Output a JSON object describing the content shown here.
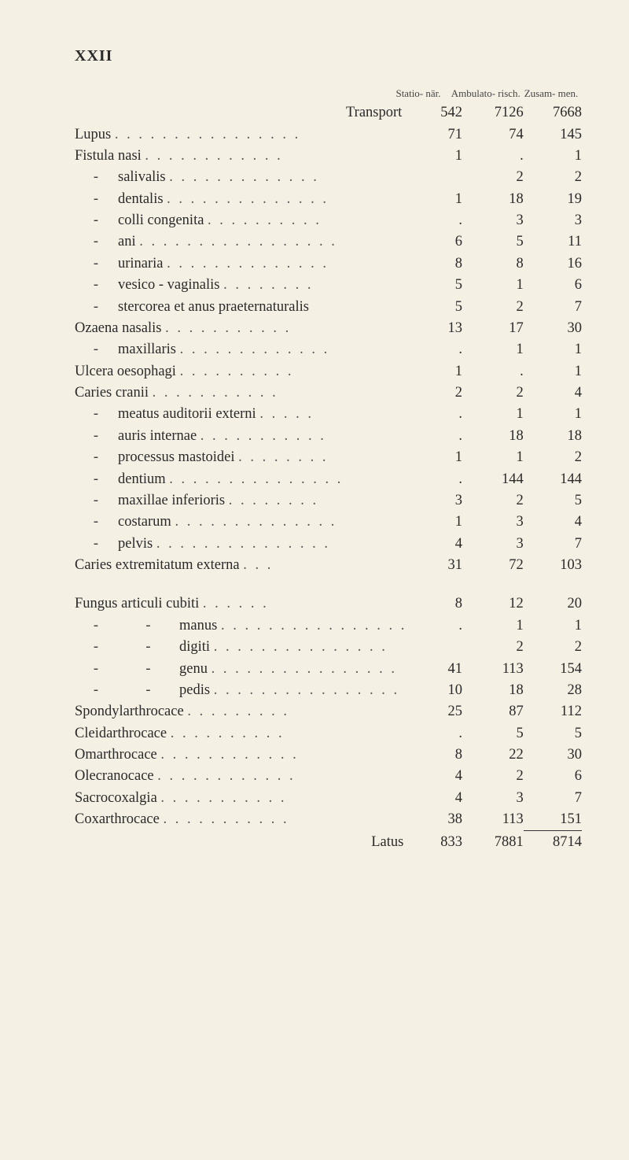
{
  "page_number": "XXII",
  "col_header_1": "Statio-\nnär.",
  "col_header_2": "Ambulato-\nrisch.",
  "col_header_3": "Zusam-\nmen.",
  "rows": [
    {
      "label": "Transport",
      "right_align_label": true,
      "c1": "542",
      "c2": "7126",
      "c3": "7668"
    },
    {
      "label": "Lupus",
      "leader": true,
      "c1": "71",
      "c2": "74",
      "c3": "145"
    },
    {
      "label": "Fistula nasi",
      "leader": true,
      "c1": "1",
      "c2": ".",
      "c3": "1"
    },
    {
      "dash": true,
      "sub": "salivalis",
      "leader": true,
      "c1": "",
      "c2": "2",
      "c3": "2"
    },
    {
      "dash": true,
      "sub": "dentalis",
      "leader": true,
      "c1": "1",
      "c2": "18",
      "c3": "19"
    },
    {
      "dash": true,
      "sub": "colli congenita",
      "leader": true,
      "c1": ".",
      "c2": "3",
      "c3": "3"
    },
    {
      "dash": true,
      "sub": "ani",
      "leader": true,
      "c1": "6",
      "c2": "5",
      "c3": "11"
    },
    {
      "dash": true,
      "sub": "urinaria",
      "leader": true,
      "c1": "8",
      "c2": "8",
      "c3": "16"
    },
    {
      "dash": true,
      "sub": "vesico - vaginalis",
      "leader": true,
      "c1": "5",
      "c2": "1",
      "c3": "6"
    },
    {
      "dash": true,
      "sub": "stercorea et anus praeternaturalis",
      "c1": "5",
      "c2": "2",
      "c3": "7"
    },
    {
      "label": "Ozaena nasalis",
      "leader": true,
      "c1": "13",
      "c2": "17",
      "c3": "30"
    },
    {
      "dash": true,
      "sub": "maxillaris",
      "leader": true,
      "c1": ".",
      "c2": "1",
      "c3": "1"
    },
    {
      "label": "Ulcera oesophagi",
      "leader": true,
      "c1": "1",
      "c2": ".",
      "c3": "1"
    },
    {
      "label": "Caries cranii",
      "leader": true,
      "c1": "2",
      "c2": "2",
      "c3": "4"
    },
    {
      "dash": true,
      "sub": "meatus auditorii externi",
      "leader": true,
      "c1": ".",
      "c2": "1",
      "c3": "1"
    },
    {
      "dash": true,
      "sub": "auris internae",
      "leader": true,
      "c1": ".",
      "c2": "18",
      "c3": "18"
    },
    {
      "dash": true,
      "sub": "processus mastoidei",
      "leader": true,
      "c1": "1",
      "c2": "1",
      "c3": "2"
    },
    {
      "dash": true,
      "sub": "dentium",
      "leader": true,
      "c1": ".",
      "c2": "144",
      "c3": "144"
    },
    {
      "dash": true,
      "sub": "maxillae inferioris",
      "leader": true,
      "c1": "3",
      "c2": "2",
      "c3": "5"
    },
    {
      "dash": true,
      "sub": "costarum",
      "leader": true,
      "c1": "1",
      "c2": "3",
      "c3": "4"
    },
    {
      "dash": true,
      "sub": "pelvis",
      "leader": true,
      "c1": "4",
      "c2": "3",
      "c3": "7"
    },
    {
      "label": "Caries extremitatum externa",
      "leader": true,
      "c1": "31",
      "c2": "72",
      "c3": "103"
    },
    {
      "sep": true
    },
    {
      "label": "Fungus articuli cubiti",
      "leader": true,
      "c1": "8",
      "c2": "12",
      "c3": "20"
    },
    {
      "dash": true,
      "dash2": true,
      "sub": "manus",
      "leader": true,
      "c1": ".",
      "c2": "1",
      "c3": "1"
    },
    {
      "dash": true,
      "dash2": true,
      "sub": "digiti",
      "leader": true,
      "c1": "",
      "c2": "2",
      "c3": "2"
    },
    {
      "dash": true,
      "dash2": true,
      "sub": "genu",
      "leader": true,
      "c1": "41",
      "c2": "113",
      "c3": "154"
    },
    {
      "dash": true,
      "dash2": true,
      "sub": "pedis",
      "leader": true,
      "c1": "10",
      "c2": "18",
      "c3": "28"
    },
    {
      "label": "Spondylarthrocace",
      "leader": true,
      "c1": "25",
      "c2": "87",
      "c3": "112"
    },
    {
      "label": "Cleidarthrocace",
      "leader": true,
      "c1": ".",
      "c2": "5",
      "c3": "5"
    },
    {
      "label": "Omarthrocace",
      "leader": true,
      "c1": "8",
      "c2": "22",
      "c3": "30"
    },
    {
      "label": "Olecranocace",
      "leader": true,
      "c1": "4",
      "c2": "2",
      "c3": "6"
    },
    {
      "label": "Sacrocoxalgia",
      "leader": true,
      "c1": "4",
      "c2": "3",
      "c3": "7"
    },
    {
      "label": "Coxarthrocace",
      "leader": true,
      "c1": "38",
      "c2": "113",
      "c3": "151"
    }
  ],
  "latus": {
    "label": "Latus",
    "c1": "833",
    "c2": "7881",
    "c3": "8714"
  }
}
